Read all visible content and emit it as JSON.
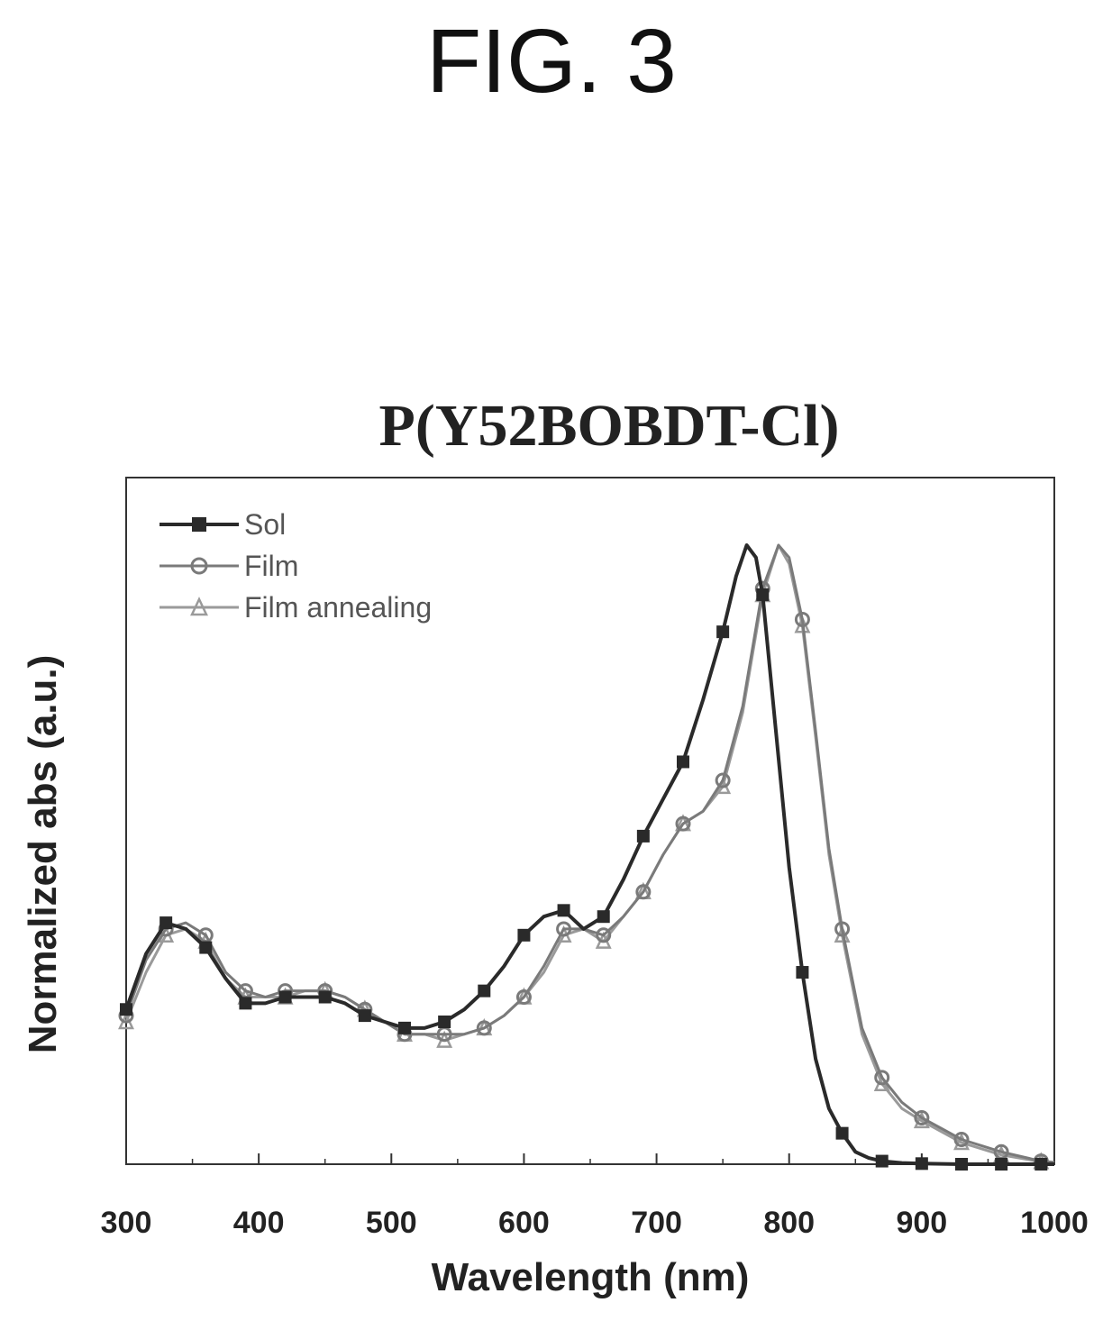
{
  "figure_label": "FIG. 3",
  "chart_data": {
    "type": "line",
    "title": "P(Y52BOBDT-Cl)",
    "xlabel": "Wavelength (nm)",
    "ylabel": "Normalized abs (a.u.)",
    "xlim": [
      300,
      1000
    ],
    "ylim": [
      0,
      1.0
    ],
    "xticks": [
      300,
      400,
      500,
      600,
      700,
      800,
      900,
      1000
    ],
    "grid": false,
    "legend_position": "top-left",
    "series": [
      {
        "name": "Sol",
        "marker": "square",
        "color": "#2a2a2a",
        "x": [
          300,
          315,
          330,
          345,
          360,
          375,
          390,
          405,
          420,
          435,
          450,
          465,
          480,
          495,
          510,
          525,
          540,
          555,
          570,
          585,
          600,
          615,
          630,
          645,
          660,
          675,
          690,
          705,
          720,
          735,
          750,
          760,
          768,
          775,
          780,
          790,
          800,
          810,
          820,
          830,
          840,
          850,
          860,
          870,
          885,
          900,
          930,
          960,
          990,
          1000
        ],
        "y": [
          0.25,
          0.34,
          0.39,
          0.38,
          0.35,
          0.3,
          0.26,
          0.26,
          0.27,
          0.27,
          0.27,
          0.26,
          0.24,
          0.23,
          0.22,
          0.22,
          0.23,
          0.25,
          0.28,
          0.32,
          0.37,
          0.4,
          0.41,
          0.38,
          0.4,
          0.46,
          0.53,
          0.59,
          0.65,
          0.75,
          0.86,
          0.95,
          1.0,
          0.98,
          0.92,
          0.7,
          0.48,
          0.31,
          0.17,
          0.09,
          0.05,
          0.02,
          0.01,
          0.005,
          0.002,
          0.001,
          0.0,
          0.0,
          0.0,
          0.0
        ]
      },
      {
        "name": "Film",
        "marker": "circle",
        "color": "#7a7a7a",
        "x": [
          300,
          315,
          330,
          345,
          360,
          375,
          390,
          405,
          420,
          435,
          450,
          465,
          480,
          495,
          510,
          525,
          540,
          555,
          570,
          585,
          600,
          615,
          630,
          645,
          660,
          675,
          690,
          705,
          720,
          735,
          750,
          765,
          780,
          792,
          800,
          810,
          820,
          830,
          840,
          855,
          870,
          885,
          900,
          930,
          960,
          990,
          1000
        ],
        "y": [
          0.24,
          0.33,
          0.38,
          0.39,
          0.37,
          0.31,
          0.28,
          0.27,
          0.28,
          0.28,
          0.28,
          0.27,
          0.25,
          0.23,
          0.21,
          0.21,
          0.21,
          0.21,
          0.22,
          0.24,
          0.27,
          0.32,
          0.38,
          0.38,
          0.37,
          0.4,
          0.44,
          0.5,
          0.55,
          0.57,
          0.62,
          0.74,
          0.93,
          1.0,
          0.98,
          0.88,
          0.7,
          0.51,
          0.38,
          0.22,
          0.14,
          0.1,
          0.075,
          0.04,
          0.02,
          0.005,
          0.003
        ]
      },
      {
        "name": "Film annealing",
        "marker": "triangle",
        "color": "#9a9a9a",
        "x": [
          300,
          315,
          330,
          345,
          360,
          375,
          390,
          405,
          420,
          435,
          450,
          465,
          480,
          495,
          510,
          525,
          540,
          555,
          570,
          585,
          600,
          615,
          630,
          645,
          660,
          675,
          690,
          705,
          720,
          735,
          750,
          765,
          780,
          792,
          800,
          810,
          820,
          830,
          840,
          855,
          870,
          885,
          900,
          930,
          960,
          990,
          1000
        ],
        "y": [
          0.23,
          0.31,
          0.37,
          0.38,
          0.36,
          0.3,
          0.27,
          0.27,
          0.27,
          0.28,
          0.28,
          0.27,
          0.25,
          0.23,
          0.21,
          0.21,
          0.2,
          0.21,
          0.22,
          0.24,
          0.27,
          0.31,
          0.37,
          0.38,
          0.36,
          0.4,
          0.44,
          0.5,
          0.55,
          0.57,
          0.61,
          0.73,
          0.92,
          1.0,
          0.97,
          0.87,
          0.69,
          0.5,
          0.37,
          0.21,
          0.13,
          0.09,
          0.07,
          0.035,
          0.015,
          0.004,
          0.002
        ]
      }
    ]
  }
}
